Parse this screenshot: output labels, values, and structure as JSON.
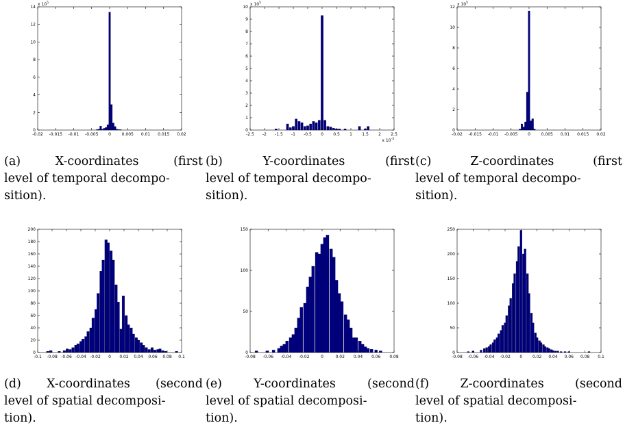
{
  "colors": {
    "bar_fill": "#000080",
    "bar_edge": "#000033",
    "axis": "#000000",
    "background": "#ffffff"
  },
  "chart_data": [
    {
      "type": "bar",
      "panel": "a",
      "xlim": [
        -0.02,
        0.02
      ],
      "ylim": [
        0,
        14
      ],
      "y_multiplier": "x 10^5",
      "yticks": [
        0,
        2,
        4,
        6,
        8,
        10,
        12,
        14
      ],
      "xticks": [
        -0.02,
        -0.015,
        -0.01,
        -0.005,
        0,
        0.005,
        0.01,
        0.015,
        0.02
      ],
      "xtick_labels": [
        "-0.02",
        "-0.015",
        "-0.01",
        "-0.005",
        "0",
        "0.005",
        "0.01",
        "0.015",
        "0.02"
      ],
      "bin_width": 0.0005,
      "bins_x": [
        -0.0035,
        -0.003,
        -0.0025,
        -0.002,
        -0.0015,
        -0.001,
        -0.0005,
        0,
        0.0005,
        0.001,
        0.0015,
        0.002,
        0.0025,
        0.003
      ],
      "values": [
        0.05,
        0.1,
        0.45,
        0.1,
        0.2,
        0.3,
        0.6,
        13.4,
        2.9,
        0.8,
        0.4,
        0.1,
        0.05,
        0.05
      ]
    },
    {
      "type": "bar",
      "panel": "b",
      "xlim": [
        -0.0025,
        0.0025
      ],
      "ylim": [
        0,
        10
      ],
      "y_multiplier": "x 10^5",
      "x_multiplier": "x 10^-3",
      "yticks": [
        0,
        1,
        2,
        3,
        4,
        5,
        6,
        7,
        8,
        9,
        10
      ],
      "xticks": [
        -0.0025,
        -0.002,
        -0.0015,
        -0.001,
        -0.0005,
        0,
        0.0005,
        0.001,
        0.0015,
        0.002,
        0.0025
      ],
      "xtick_labels": [
        "-2.5",
        "-2",
        "-1.5",
        "-1",
        "-0.5",
        "0",
        "0.5",
        "1",
        "1.5",
        "2",
        "2.5"
      ],
      "bin_width": 8e-05,
      "bins_x": [
        -0.0016,
        -0.0012,
        -0.0011,
        -0.001,
        -0.0009,
        -0.0008,
        -0.0007,
        -0.0006,
        -0.0005,
        -0.0004,
        -0.0003,
        -0.0002,
        -0.0001,
        0,
        0.0001,
        0.0002,
        0.0003,
        0.0004,
        0.0005,
        0.0006,
        0.0008,
        0.0013,
        0.0015,
        0.0016
      ],
      "values": [
        0.1,
        0.5,
        0.2,
        0.3,
        0.9,
        0.7,
        0.6,
        0.3,
        0.35,
        0.5,
        0.7,
        0.6,
        0.8,
        9.3,
        0.8,
        0.3,
        0.25,
        0.15,
        0.1,
        0.1,
        0.1,
        0.3,
        0.1,
        0.3
      ]
    },
    {
      "type": "bar",
      "panel": "c",
      "xlim": [
        -0.02,
        0.02
      ],
      "ylim": [
        0,
        12
      ],
      "y_multiplier": "x 10^5",
      "yticks": [
        0,
        2,
        4,
        6,
        8,
        10,
        12
      ],
      "xticks": [
        -0.02,
        -0.015,
        -0.01,
        -0.005,
        0,
        0.005,
        0.01,
        0.015,
        0.02
      ],
      "xtick_labels": [
        "-0.02",
        "-0.015",
        "-0.01",
        "-0.005",
        "0",
        "0.005",
        "0.01",
        "0.015",
        "0.02"
      ],
      "bin_width": 0.0005,
      "bins_x": [
        -0.0025,
        -0.002,
        -0.0015,
        -0.001,
        -0.0005,
        0,
        0.0005,
        0.001,
        0.0015
      ],
      "values": [
        0.1,
        0.6,
        0.3,
        0.8,
        3.7,
        11.6,
        0.9,
        1.1,
        0.1
      ]
    },
    {
      "type": "bar",
      "panel": "d",
      "xlim": [
        -0.1,
        0.1
      ],
      "ylim": [
        0,
        200
      ],
      "yticks": [
        0,
        20,
        40,
        60,
        80,
        100,
        120,
        140,
        160,
        180,
        200
      ],
      "xticks": [
        -0.1,
        -0.08,
        -0.06,
        -0.04,
        -0.02,
        0,
        0.02,
        0.04,
        0.06,
        0.08,
        0.1
      ],
      "xtick_labels": [
        "-0.1",
        "-0.08",
        "-0.06",
        "-0.04",
        "-0.02",
        "0",
        "0.02",
        "0.04",
        "0.06",
        "0.08",
        "0.1"
      ],
      "bin_width": 0.0035,
      "bins_x": [
        -0.086,
        -0.082,
        -0.07,
        -0.063,
        -0.059,
        -0.055,
        -0.051,
        -0.047,
        -0.044,
        -0.04,
        -0.037,
        -0.033,
        -0.03,
        -0.026,
        -0.023,
        -0.019,
        -0.016,
        -0.012,
        -0.009,
        -0.005,
        -0.002,
        0.002,
        0.005,
        0.009,
        0.012,
        0.016,
        0.019,
        0.023,
        0.026,
        0.03,
        0.033,
        0.037,
        0.04,
        0.044,
        0.047,
        0.051,
        0.055,
        0.059,
        0.063,
        0.067,
        0.07,
        0.074,
        0.078,
        0.093
      ],
      "values": [
        2,
        3,
        2,
        3,
        6,
        5,
        8,
        12,
        14,
        18,
        22,
        26,
        34,
        40,
        56,
        70,
        96,
        132,
        150,
        183,
        178,
        165,
        150,
        110,
        82,
        38,
        92,
        60,
        45,
        40,
        30,
        24,
        20,
        16,
        12,
        8,
        5,
        8,
        4,
        5,
        6,
        3,
        2,
        2
      ]
    },
    {
      "type": "bar",
      "panel": "e",
      "xlim": [
        -0.08,
        0.08
      ],
      "ylim": [
        0,
        150
      ],
      "yticks": [
        0,
        50,
        100,
        150
      ],
      "xticks": [
        -0.08,
        -0.06,
        -0.04,
        -0.02,
        0,
        0.02,
        0.04,
        0.06,
        0.08
      ],
      "xtick_labels": [
        "-0.08",
        "-0.06",
        "-0.04",
        "-0.02",
        "0",
        "0.02",
        "0.04",
        "0.06",
        "0.08"
      ],
      "bin_width": 0.0032,
      "bins_x": [
        -0.073,
        -0.061,
        -0.054,
        -0.048,
        -0.045,
        -0.042,
        -0.039,
        -0.035,
        -0.032,
        -0.029,
        -0.026,
        -0.023,
        -0.019,
        -0.016,
        -0.013,
        -0.01,
        -0.006,
        -0.003,
        0,
        0.003,
        0.006,
        0.01,
        0.013,
        0.016,
        0.019,
        0.022,
        0.026,
        0.029,
        0.032,
        0.035,
        0.038,
        0.042,
        0.045,
        0.048,
        0.051,
        0.055,
        0.06,
        0.065
      ],
      "values": [
        2,
        2,
        3,
        5,
        8,
        10,
        14,
        18,
        22,
        30,
        42,
        55,
        60,
        80,
        92,
        105,
        122,
        120,
        132,
        140,
        143,
        126,
        116,
        88,
        72,
        62,
        46,
        40,
        30,
        18,
        18,
        14,
        10,
        7,
        5,
        4,
        3,
        2
      ]
    },
    {
      "type": "bar",
      "panel": "f",
      "xlim": [
        -0.08,
        0.1
      ],
      "ylim": [
        0,
        250
      ],
      "yticks": [
        0,
        50,
        100,
        150,
        200,
        250
      ],
      "xticks": [
        -0.08,
        -0.06,
        -0.04,
        -0.02,
        0,
        0.02,
        0.04,
        0.06,
        0.08,
        0.1
      ],
      "xtick_labels": [
        "-0.08",
        "-0.06",
        "-0.04",
        "-0.02",
        "0",
        "0.02",
        "0.04",
        "0.06",
        "0.08",
        "0.1"
      ],
      "bin_width": 0.0025,
      "bins_x": [
        -0.066,
        -0.06,
        -0.05,
        -0.046,
        -0.043,
        -0.04,
        -0.038,
        -0.035,
        -0.033,
        -0.03,
        -0.028,
        -0.025,
        -0.023,
        -0.02,
        -0.018,
        -0.015,
        -0.013,
        -0.01,
        -0.008,
        -0.005,
        -0.003,
        0,
        0.003,
        0.005,
        0.008,
        0.01,
        0.013,
        0.015,
        0.018,
        0.02,
        0.023,
        0.025,
        0.028,
        0.03,
        0.033,
        0.035,
        0.038,
        0.04,
        0.043,
        0.046,
        0.05,
        0.055,
        0.06,
        0.085
      ],
      "values": [
        2,
        3,
        5,
        8,
        10,
        12,
        16,
        20,
        26,
        30,
        38,
        45,
        55,
        60,
        75,
        95,
        110,
        140,
        160,
        185,
        215,
        248,
        200,
        210,
        160,
        120,
        80,
        60,
        40,
        30,
        24,
        20,
        16,
        12,
        10,
        8,
        6,
        4,
        3,
        3,
        2,
        2,
        2,
        2
      ]
    }
  ],
  "captions": {
    "a": {
      "l1_label": "(a)",
      "l1_word": "X-coordinates",
      "l1_end": "(first",
      "l2": "level of temporal decompo-",
      "l3": "sition)."
    },
    "b": {
      "l1_label": "(b)",
      "l1_word": "Y-coordinates",
      "l1_end": "(first",
      "l2": "level of temporal decompo-",
      "l3": "sition)."
    },
    "c": {
      "l1_label": "(c)",
      "l1_word": "Z-coordinates",
      "l1_end": "(first",
      "l2": "level of temporal decompo-",
      "l3": "sition)."
    },
    "d": {
      "l1_label": "(d)",
      "l1_word": "X-coordinates",
      "l1_end": "(second",
      "l2": "level of spatial decomposi-",
      "l3": "tion)."
    },
    "e": {
      "l1_label": "(e)",
      "l1_word": "Y-coordinates",
      "l1_end": "(second",
      "l2": "level of spatial decomposi-",
      "l3": "tion)."
    },
    "f": {
      "l1_label": "(f)",
      "l1_word": "Z-coordinates",
      "l1_end": "(second",
      "l2": "level of spatial decomposi-",
      "l3": "tion)."
    }
  }
}
